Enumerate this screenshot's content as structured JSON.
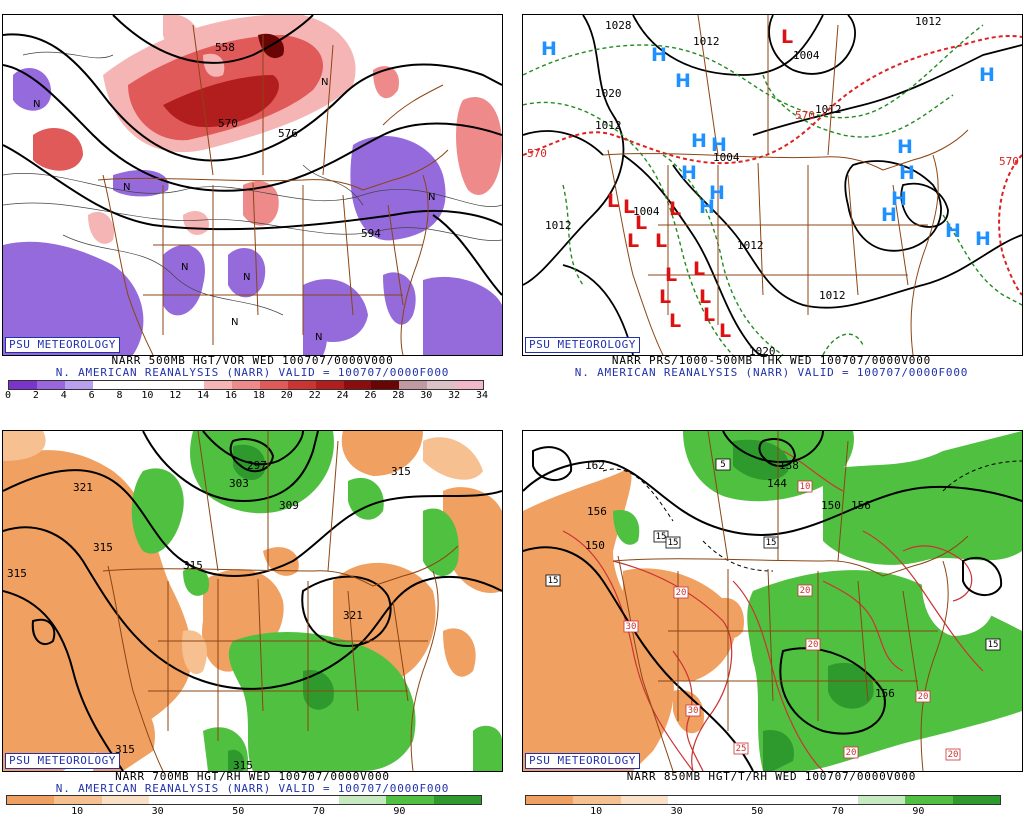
{
  "credit": "PSU METEOROLOGY",
  "panels": {
    "tl": {
      "caption1": "NARR 500MB HGT/VOR WED 100707/0000V000",
      "caption2": "N. AMERICAN REANALYSIS (NARR) VALID = 100707/0000F000",
      "contour_labels": [
        "558",
        "570",
        "576",
        "594"
      ],
      "colorbar_ticks": [
        "0",
        "2",
        "4",
        "6",
        "8",
        "10",
        "12",
        "14",
        "16",
        "18",
        "20",
        "22",
        "24",
        "26",
        "28",
        "30",
        "32",
        "34"
      ],
      "colorbar_colors": [
        "#7a33cc",
        "#9966dd",
        "#b9a0ee",
        "#ffffff",
        "#ffffff",
        "#ffffff",
        "#ffffff",
        "#f6b5b5",
        "#ee8a8a",
        "#e05a5a",
        "#cc3333",
        "#b21d1d",
        "#8c0d0d",
        "#6a0505",
        "#c09aa0",
        "#dcc2c6",
        "#f0b8c8"
      ],
      "symbol": "N"
    },
    "tr": {
      "caption1": "NARR PRS/1000-500MB THK WED 100707/0000V000",
      "caption2": "N. AMERICAN REANALYSIS (NARR) VALID = 100707/0000F000",
      "isobar_labels": [
        "1028",
        "1012",
        "1004",
        "1020",
        "1012",
        "1012",
        "1004",
        "1012",
        "1012",
        "1012",
        "1004",
        "1012",
        "1020"
      ],
      "thickness_labels": [
        "570",
        "570",
        "570"
      ],
      "high_symbol": "H",
      "low_symbol": "L"
    },
    "bl": {
      "caption1": "NARR 700MB HGT/RH WED 100707/0000V000",
      "caption2": "N. AMERICAN REANALYSIS (NARR) VALID = 100707/0000F000",
      "contour_labels": [
        "321",
        "315",
        "315",
        "297",
        "303",
        "309",
        "315",
        "315",
        "321",
        "315",
        "315"
      ],
      "colorbar_ticks": [
        "10",
        "30",
        "50",
        "70",
        "90"
      ],
      "colorbar_colors": [
        "#f0a060",
        "#f6c090",
        "#fbe0c8",
        "#ffffff",
        "#ffffff",
        "#ffffff",
        "#ffffff",
        "#c8eac0",
        "#50c040",
        "#2e9a2e"
      ]
    },
    "br": {
      "caption1": "NARR 850MB HGT/T/RH WED 100707/0000V000",
      "caption2": "",
      "contour_labels": [
        "162",
        "156",
        "150",
        "138",
        "144",
        "150",
        "156",
        "156"
      ],
      "temp_labels": [
        "5",
        "10",
        "15",
        "15",
        "15",
        "15",
        "15",
        "20",
        "20",
        "20",
        "20",
        "20",
        "20",
        "25",
        "30",
        "30"
      ],
      "colorbar_ticks": [
        "10",
        "30",
        "50",
        "70",
        "90"
      ],
      "colorbar_colors": [
        "#f0a060",
        "#f6c090",
        "#fbe0c8",
        "#ffffff",
        "#ffffff",
        "#ffffff",
        "#ffffff",
        "#c8eac0",
        "#50c040",
        "#2e9a2e"
      ]
    }
  }
}
